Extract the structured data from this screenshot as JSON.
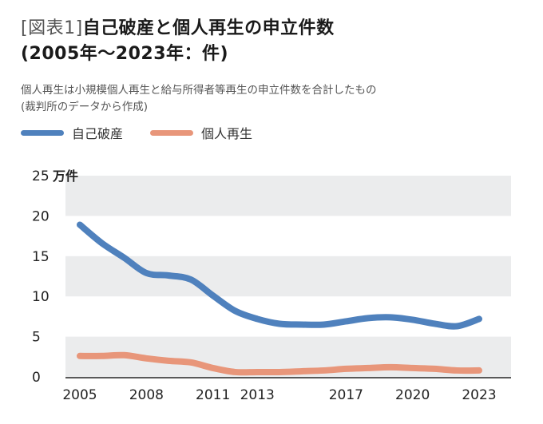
{
  "header": {
    "title_prefix": "[図表1]",
    "title_main": "自己破産と個人再生の申立件数",
    "title_line2": "(2005年～2023年：件)",
    "note_line1": "個人再生は小規模個人再生と給与所得者等再生の申立件数を合計したもの",
    "note_line2": "(裁判所のデータから作成)"
  },
  "legend": [
    {
      "label": "自己破産",
      "color": "#4f81bd"
    },
    {
      "label": "個人再生",
      "color": "#e8967a"
    }
  ],
  "colors": {
    "band": "#ebeced",
    "axis": "#222222"
  },
  "chart_data": {
    "type": "line",
    "ylabel": "万件",
    "ylim": [
      0,
      25
    ],
    "y_ticks": [
      "0",
      "5",
      "10",
      "15",
      "20",
      "25"
    ],
    "x_tick_labels": [
      "2005",
      "2008",
      "2011",
      "2013",
      "2017",
      "2020",
      "2023"
    ],
    "x": [
      2005,
      2006,
      2007,
      2008,
      2009,
      2010,
      2011,
      2012,
      2013,
      2014,
      2015,
      2016,
      2017,
      2018,
      2019,
      2020,
      2021,
      2022,
      2023
    ],
    "series": [
      {
        "name": "自己破産",
        "color": "#4f81bd",
        "values": [
          18.9,
          16.6,
          14.8,
          12.9,
          12.6,
          12.1,
          10.1,
          8.2,
          7.2,
          6.6,
          6.5,
          6.5,
          6.9,
          7.3,
          7.4,
          7.1,
          6.6,
          6.3,
          7.2
        ]
      },
      {
        "name": "個人再生",
        "color": "#e8967a",
        "values": [
          2.6,
          2.6,
          2.7,
          2.3,
          2.0,
          1.8,
          1.1,
          0.6,
          0.6,
          0.6,
          0.7,
          0.8,
          1.0,
          1.1,
          1.2,
          1.1,
          1.0,
          0.8,
          0.8
        ]
      }
    ]
  }
}
